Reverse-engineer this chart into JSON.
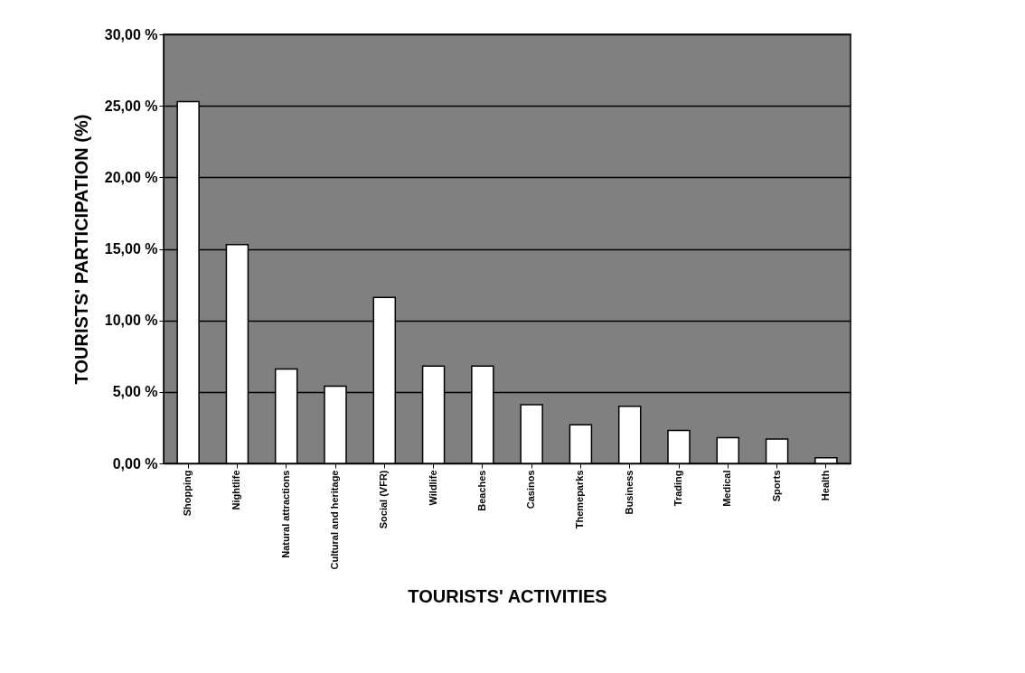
{
  "chart_data": {
    "type": "bar",
    "xlabel": "TOURISTS' ACTIVITIES",
    "ylabel": "TOURISTS' PARTICIPATION (%)",
    "categories": [
      "Shopping",
      "Nightlife",
      "Natural attractions",
      "Cultural and heritage",
      "Social (VFR)",
      "Wildlife",
      "Beaches",
      "Casinos",
      "Themeparks",
      "Business",
      "Trading",
      "Medical",
      "Sports",
      "Health"
    ],
    "values": [
      25.3,
      15.3,
      6.6,
      5.4,
      11.6,
      6.8,
      6.8,
      4.1,
      2.7,
      4.0,
      2.3,
      1.8,
      1.7,
      0.4
    ],
    "color": "#ffffff",
    "ylim": [
      0,
      30
    ],
    "yticks": [
      {
        "value": 0,
        "label": "0,00 %"
      },
      {
        "value": 5,
        "label": "5,00 %"
      },
      {
        "value": 10,
        "label": "10,00 %"
      },
      {
        "value": 15,
        "label": "15,00 %"
      },
      {
        "value": 20,
        "label": "20,00 %"
      },
      {
        "value": 25,
        "label": "25,00 %"
      },
      {
        "value": 30,
        "label": "30,00 %"
      }
    ],
    "grid": "y"
  }
}
